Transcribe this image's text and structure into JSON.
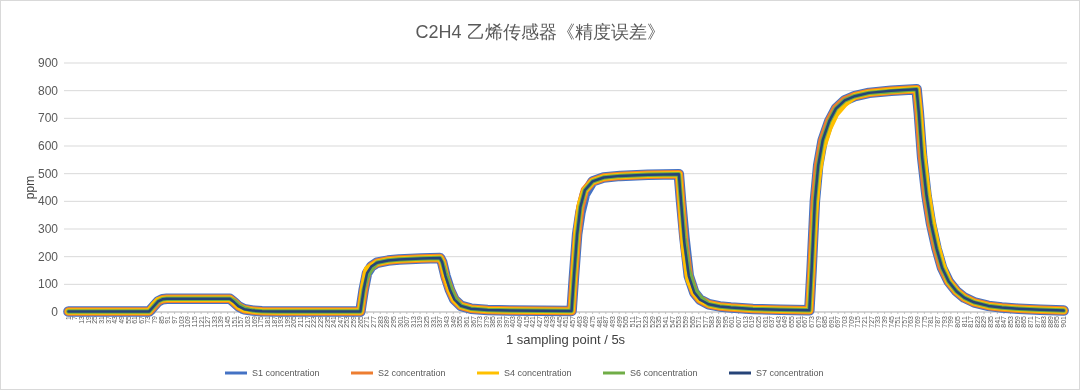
{
  "chart_data": {
    "type": "line",
    "title": "C2H4 乙烯传感器《精度误差》",
    "xlabel": "1 sampling point / 5s",
    "ylabel": "ppm",
    "x": [
      1,
      74,
      78,
      82,
      86,
      90,
      147,
      151,
      155,
      160,
      168,
      176,
      190,
      265,
      268,
      271,
      275,
      280,
      290,
      300,
      320,
      337,
      339,
      342,
      346,
      350,
      356,
      365,
      380,
      400,
      456,
      458,
      461,
      464,
      468,
      475,
      485,
      500,
      525,
      553,
      555,
      558,
      562,
      567,
      572,
      580,
      590,
      600,
      620,
      645,
      670,
      671,
      673,
      676,
      679,
      683,
      689,
      695,
      703,
      712,
      725,
      745,
      768,
      770,
      773,
      777,
      781,
      786,
      791,
      797,
      804,
      811,
      820,
      833,
      845,
      860,
      880,
      901
    ],
    "xlim": [
      -3,
      904
    ],
    "xticks": [
      1,
      7,
      13,
      19,
      25,
      31,
      37,
      43,
      49,
      55,
      61,
      67,
      73,
      79,
      85,
      91,
      97,
      103,
      109,
      115,
      121,
      127,
      133,
      139,
      145,
      151,
      157,
      163,
      169,
      175,
      181,
      187,
      193,
      199,
      205,
      211,
      217,
      223,
      229,
      235,
      241,
      247,
      253,
      259,
      265,
      271,
      277,
      283,
      289,
      295,
      301,
      307,
      313,
      319,
      325,
      331,
      337,
      343,
      349,
      355,
      361,
      367,
      373,
      379,
      385,
      391,
      397,
      403,
      409,
      415,
      421,
      427,
      433,
      439,
      445,
      451,
      457,
      463,
      469,
      475,
      481,
      487,
      493,
      499,
      505,
      511,
      517,
      523,
      529,
      535,
      541,
      547,
      553,
      559,
      565,
      571,
      577,
      583,
      589,
      595,
      601,
      607,
      613,
      619,
      625,
      631,
      637,
      643,
      649,
      655,
      661,
      667,
      673,
      679,
      685,
      691,
      697,
      703,
      709,
      715,
      721,
      727,
      733,
      739,
      745,
      751,
      757,
      763,
      769,
      775,
      781,
      787,
      793,
      799,
      805,
      811,
      817,
      823,
      829,
      835,
      841,
      847,
      853,
      859,
      865,
      871,
      877,
      883,
      889,
      895,
      901
    ],
    "ylim": [
      0,
      900
    ],
    "yticks": [
      0,
      100,
      200,
      300,
      400,
      500,
      600,
      700,
      800,
      900
    ],
    "grid": "y",
    "legend": "bottom",
    "line_style": "solid",
    "series": [
      {
        "name": "S1 concentration",
        "color": "#4472c4",
        "values": [
          2,
          2,
          20,
          38,
          46,
          48,
          48,
          35,
          20,
          10,
          5,
          3,
          2,
          2,
          80,
          140,
          165,
          178,
          186,
          190,
          193,
          195,
          180,
          130,
          80,
          45,
          22,
          12,
          7,
          5,
          4,
          120,
          280,
          360,
          425,
          472,
          486,
          492,
          496,
          498,
          400,
          270,
          130,
          70,
          45,
          28,
          20,
          16,
          11,
          8,
          6,
          6,
          150,
          400,
          530,
          620,
          690,
          735,
          765,
          780,
          792,
          800,
          805,
          720,
          560,
          420,
          320,
          230,
          160,
          110,
          75,
          52,
          35,
          22,
          16,
          12,
          8,
          5
        ]
      },
      {
        "name": "S2 concentration",
        "color": "#ed7d31",
        "values": [
          2,
          2,
          20,
          38,
          46,
          48,
          48,
          35,
          20,
          10,
          5,
          3,
          2,
          2,
          80,
          145,
          165,
          178,
          186,
          190,
          193,
          195,
          180,
          125,
          80,
          45,
          22,
          12,
          7,
          5,
          4,
          120,
          280,
          380,
          440,
          472,
          486,
          492,
          496,
          498,
          400,
          250,
          130,
          70,
          45,
          28,
          20,
          16,
          11,
          8,
          6,
          6,
          150,
          400,
          530,
          620,
          690,
          735,
          765,
          780,
          792,
          800,
          805,
          720,
          560,
          420,
          320,
          230,
          160,
          110,
          75,
          52,
          35,
          22,
          16,
          12,
          8,
          5
        ]
      },
      {
        "name": "S4 concentration",
        "color": "#ffc000",
        "values": [
          2,
          2,
          25,
          42,
          46,
          48,
          48,
          35,
          20,
          10,
          5,
          3,
          2,
          2,
          95,
          155,
          165,
          178,
          186,
          190,
          193,
          195,
          180,
          130,
          80,
          45,
          22,
          12,
          7,
          5,
          4,
          120,
          300,
          395,
          440,
          472,
          486,
          492,
          496,
          498,
          390,
          230,
          115,
          70,
          45,
          28,
          20,
          16,
          11,
          8,
          6,
          6,
          150,
          360,
          490,
          590,
          665,
          715,
          752,
          780,
          792,
          800,
          805,
          740,
          600,
          460,
          350,
          250,
          175,
          110,
          75,
          52,
          35,
          22,
          16,
          12,
          8,
          5
        ]
      },
      {
        "name": "S6 concentration",
        "color": "#70ad47",
        "values": [
          2,
          2,
          20,
          38,
          46,
          48,
          48,
          40,
          25,
          13,
          5,
          3,
          2,
          2,
          80,
          125,
          155,
          178,
          186,
          190,
          193,
          195,
          180,
          140,
          95,
          55,
          22,
          12,
          7,
          5,
          4,
          120,
          280,
          380,
          440,
          472,
          486,
          492,
          496,
          498,
          400,
          270,
          150,
          85,
          55,
          28,
          20,
          16,
          11,
          8,
          6,
          6,
          150,
          400,
          530,
          620,
          690,
          735,
          765,
          780,
          792,
          798,
          805,
          720,
          560,
          420,
          320,
          230,
          160,
          110,
          75,
          52,
          35,
          22,
          16,
          12,
          8,
          5
        ]
      },
      {
        "name": "S7 concentration",
        "color": "#264478",
        "values": [
          2,
          2,
          20,
          38,
          46,
          48,
          48,
          35,
          20,
          10,
          5,
          3,
          2,
          2,
          80,
          140,
          165,
          178,
          186,
          190,
          193,
          195,
          180,
          130,
          80,
          45,
          22,
          12,
          7,
          5,
          4,
          120,
          280,
          380,
          440,
          472,
          486,
          492,
          496,
          498,
          400,
          250,
          130,
          70,
          45,
          28,
          20,
          16,
          11,
          8,
          6,
          6,
          150,
          400,
          530,
          620,
          690,
          735,
          765,
          780,
          792,
          800,
          805,
          720,
          560,
          420,
          320,
          230,
          160,
          110,
          75,
          52,
          35,
          22,
          16,
          12,
          8,
          5
        ]
      }
    ]
  }
}
